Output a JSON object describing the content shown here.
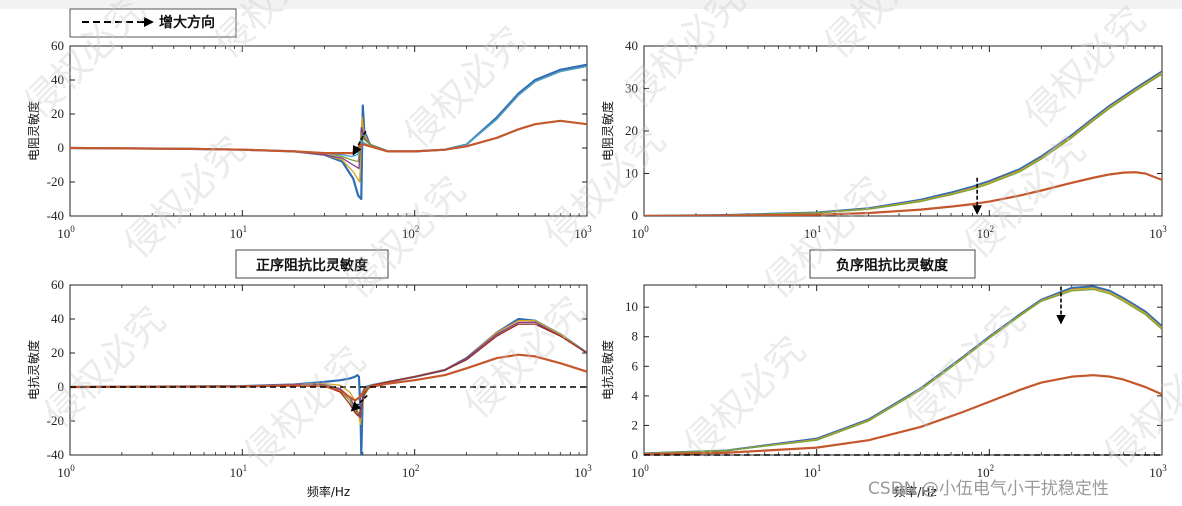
{
  "legend": {
    "label": "增大方向"
  },
  "watermark": {
    "text": "侵权必究"
  },
  "credit": {
    "text": "CSDN @小伍电气小干扰稳定性"
  },
  "colors": {
    "blue": "#2f6db5",
    "orange": "#c5572c",
    "yellow": "#d9a21e",
    "purple": "#7e3f8f",
    "green": "#7aa33a",
    "cyan": "#4aa3d8",
    "red": "#a52a2a",
    "axis": "#222222",
    "reference": "#000000"
  },
  "chart_data": [
    {
      "id": "tl",
      "type": "line",
      "xscale": "log",
      "xlim": [
        1,
        1000
      ],
      "ylim": [
        -40,
        60
      ],
      "yticks": [
        -40,
        -20,
        0,
        20,
        40,
        60
      ],
      "xticks": [
        {
          "base": "10",
          "exp": "0"
        },
        {
          "base": "10",
          "exp": "1"
        },
        {
          "base": "10",
          "exp": "2"
        },
        {
          "base": "10",
          "exp": "3"
        }
      ],
      "ylabel": "电阻灵敏度",
      "xlabel": "",
      "title": "",
      "series": [
        {
          "color": "blue",
          "x": [
            1,
            5,
            10,
            20,
            30,
            38,
            44,
            47,
            49,
            50,
            51,
            55,
            70,
            100,
            150,
            200,
            300,
            400,
            500,
            700,
            1000
          ],
          "y": [
            0,
            -0.5,
            -1,
            -2,
            -4,
            -8,
            -18,
            -28,
            -30,
            25,
            10,
            2,
            -2,
            -2,
            -1,
            2,
            18,
            32,
            40,
            46,
            49
          ]
        },
        {
          "color": "yellow",
          "x": [
            1,
            5,
            10,
            20,
            30,
            38,
            44,
            48,
            49.5,
            51,
            55,
            70,
            100,
            150,
            200,
            300,
            400,
            500,
            700,
            1000
          ],
          "y": [
            0,
            -0.5,
            -1,
            -2,
            -4,
            -7,
            -14,
            -20,
            18,
            8,
            2,
            -2,
            -2,
            -1,
            2,
            17,
            31,
            39,
            45,
            48
          ]
        },
        {
          "color": "purple",
          "x": [
            1,
            5,
            10,
            20,
            30,
            38,
            44,
            47.5,
            49,
            51,
            55,
            70,
            100,
            150,
            200,
            300,
            400,
            500,
            700,
            1000
          ],
          "y": [
            0,
            -0.5,
            -1,
            -2,
            -4,
            -6,
            -10,
            -12,
            12,
            6,
            2,
            -2,
            -2,
            -1,
            2,
            17,
            31,
            39,
            45,
            48
          ]
        },
        {
          "color": "green",
          "x": [
            1,
            5,
            10,
            20,
            30,
            38,
            43,
            47,
            49,
            51,
            55,
            70,
            100,
            150,
            200,
            300,
            400,
            500,
            700,
            1000
          ],
          "y": [
            0,
            -0.5,
            -1,
            -2,
            -3,
            -5,
            -7,
            -8,
            8,
            5,
            2,
            -2,
            -2,
            -1,
            2,
            17,
            31,
            39,
            45,
            48
          ]
        },
        {
          "color": "cyan",
          "x": [
            1,
            5,
            10,
            20,
            30,
            38,
            43,
            46.5,
            48.5,
            51,
            55,
            70,
            100,
            150,
            200,
            300,
            400,
            500,
            700,
            1000
          ],
          "y": [
            0,
            -0.5,
            -1,
            -2,
            -3,
            -4,
            -5,
            -4,
            4,
            3,
            1,
            -2,
            -2,
            -1,
            2,
            17,
            31,
            39,
            45,
            48
          ]
        },
        {
          "color": "orange",
          "x": [
            1,
            5,
            10,
            20,
            30,
            38,
            43,
            46,
            48,
            51,
            55,
            70,
            100,
            150,
            200,
            300,
            400,
            500,
            700,
            1000
          ],
          "y": [
            0,
            -0.5,
            -1,
            -2,
            -3,
            -3,
            -3,
            -2,
            2,
            2,
            1,
            -2,
            -2,
            -1,
            1,
            6,
            11,
            14,
            16,
            14
          ]
        }
      ],
      "arrow": {
        "from": [
          52,
          10
        ],
        "to": [
          44,
          -4
        ]
      }
    },
    {
      "id": "tr",
      "type": "line",
      "xscale": "log",
      "xlim": [
        1,
        1000
      ],
      "ylim": [
        0,
        40
      ],
      "yticks": [
        0,
        10,
        20,
        30,
        40
      ],
      "xticks": [
        {
          "base": "10",
          "exp": "0"
        },
        {
          "base": "10",
          "exp": "1"
        },
        {
          "base": "10",
          "exp": "2"
        },
        {
          "base": "10",
          "exp": "3"
        }
      ],
      "ylabel": "电阻灵敏度",
      "xlabel": "",
      "title": "",
      "series": [
        {
          "color": "blue",
          "x": [
            1,
            3,
            10,
            20,
            40,
            60,
            80,
            100,
            150,
            200,
            300,
            400,
            500,
            700,
            1000
          ],
          "y": [
            0,
            0.2,
            0.8,
            1.8,
            3.8,
            5.5,
            6.9,
            8.2,
            11,
            14,
            19,
            23,
            26,
            30,
            34
          ]
        },
        {
          "color": "yellow",
          "x": [
            1,
            3,
            10,
            20,
            40,
            60,
            80,
            100,
            150,
            200,
            300,
            400,
            500,
            700,
            1000
          ],
          "y": [
            0,
            0.2,
            0.75,
            1.7,
            3.6,
            5.2,
            6.6,
            7.9,
            10.7,
            13.7,
            18.7,
            22.7,
            25.7,
            29.7,
            33.7
          ]
        },
        {
          "color": "green",
          "x": [
            1,
            3,
            10,
            20,
            40,
            60,
            80,
            100,
            150,
            200,
            300,
            400,
            500,
            700,
            1000
          ],
          "y": [
            0,
            0.2,
            0.7,
            1.6,
            3.4,
            5.0,
            6.3,
            7.6,
            10.4,
            13.4,
            18.4,
            22.4,
            25.4,
            29.4,
            33.4
          ]
        },
        {
          "color": "orange",
          "x": [
            1,
            3,
            10,
            20,
            40,
            60,
            80,
            100,
            150,
            200,
            300,
            400,
            500,
            600,
            700,
            800,
            1000
          ],
          "y": [
            0,
            0.1,
            0.3,
            0.7,
            1.5,
            2.2,
            2.8,
            3.4,
            4.8,
            6.0,
            7.8,
            9.0,
            9.8,
            10.2,
            10.3,
            10.0,
            8.5
          ]
        }
      ],
      "arrow": {
        "from": [
          85,
          9
        ],
        "to": [
          85,
          0.5
        ]
      }
    },
    {
      "id": "bl",
      "type": "line",
      "xscale": "log",
      "xlim": [
        1,
        1000
      ],
      "ylim": [
        -40,
        60
      ],
      "yticks": [
        -40,
        -20,
        0,
        20,
        40,
        60
      ],
      "xticks": [
        {
          "base": "10",
          "exp": "0"
        },
        {
          "base": "10",
          "exp": "1"
        },
        {
          "base": "10",
          "exp": "2"
        },
        {
          "base": "10",
          "exp": "3"
        }
      ],
      "ylabel": "电抗灵敏度",
      "xlabel": "频率/Hz",
      "title": "正序阻抗比灵敏度",
      "reference": 0,
      "series": [
        {
          "color": "blue",
          "x": [
            1,
            10,
            20,
            30,
            37,
            42,
            45,
            46.5,
            47.5,
            48.5,
            49,
            50,
            52,
            56,
            70,
            100,
            150,
            200,
            300,
            400,
            500,
            700,
            1000
          ],
          "y": [
            0,
            0.5,
            1.5,
            3,
            4,
            5,
            6,
            7,
            6,
            -15,
            -40,
            -3,
            0,
            1,
            3,
            6,
            10,
            17,
            32,
            40,
            39,
            31,
            20
          ]
        },
        {
          "color": "yellow",
          "x": [
            1,
            10,
            20,
            30,
            37,
            42,
            45,
            47,
            48.5,
            49.5,
            52,
            56,
            70,
            100,
            150,
            200,
            300,
            400,
            500,
            700,
            1000
          ],
          "y": [
            0,
            0.5,
            1.5,
            2,
            1,
            -3,
            -8,
            -15,
            -22,
            -8,
            -1,
            1,
            3,
            6,
            10,
            17,
            32,
            39,
            39,
            31,
            20
          ]
        },
        {
          "color": "purple",
          "x": [
            1,
            10,
            20,
            30,
            37,
            42,
            45,
            47,
            48.5,
            50,
            53,
            57,
            70,
            100,
            150,
            200,
            300,
            400,
            500,
            700,
            1000
          ],
          "y": [
            0,
            0.5,
            1.5,
            1.5,
            -1,
            -6,
            -12,
            -16,
            -18,
            -6,
            -1,
            1,
            3,
            6,
            10,
            17,
            31,
            38,
            38,
            30,
            20
          ]
        },
        {
          "color": "green",
          "x": [
            1,
            10,
            20,
            30,
            37,
            42,
            45,
            47,
            49,
            51,
            54,
            58,
            70,
            100,
            150,
            200,
            300,
            400,
            500,
            700,
            1000
          ],
          "y": [
            0,
            0.5,
            1,
            1,
            -2,
            -8,
            -14,
            -16,
            -14,
            -5,
            -1,
            1,
            3,
            6,
            10,
            16,
            30,
            37,
            37,
            30,
            20
          ]
        },
        {
          "color": "red",
          "x": [
            1,
            10,
            20,
            30,
            37,
            42,
            45,
            47,
            49,
            51,
            54,
            58,
            70,
            100,
            150,
            200,
            300,
            400,
            500,
            700,
            1000
          ],
          "y": [
            0,
            0.5,
            1,
            0.5,
            -3,
            -10,
            -15,
            -17,
            -13,
            -4,
            0,
            1,
            3,
            6,
            10,
            16,
            30,
            37,
            37,
            30,
            20
          ]
        },
        {
          "color": "orange",
          "x": [
            1,
            10,
            20,
            30,
            37,
            42,
            45,
            48,
            51,
            55,
            70,
            100,
            150,
            200,
            300,
            400,
            500,
            700,
            1000
          ],
          "y": [
            0,
            0.3,
            0.8,
            0.5,
            -2,
            -6,
            -8,
            -6,
            -2,
            0,
            2,
            4,
            7,
            11,
            17,
            19,
            18,
            14,
            9
          ]
        }
      ],
      "arrow": {
        "from": [
          53,
          -5
        ],
        "to": [
          43,
          -14
        ]
      }
    },
    {
      "id": "br",
      "type": "line",
      "xscale": "log",
      "xlim": [
        1,
        1000
      ],
      "ylim": [
        0,
        11.5
      ],
      "yticks": [
        0,
        2,
        4,
        6,
        8,
        10
      ],
      "xticks": [
        {
          "base": "10",
          "exp": "0"
        },
        {
          "base": "10",
          "exp": "1"
        },
        {
          "base": "10",
          "exp": "2"
        },
        {
          "base": "10",
          "exp": "3"
        }
      ],
      "ylabel": "电抗灵敏度",
      "xlabel": "频率/Hz",
      "title": "负序阻抗比灵敏度",
      "reference": 0,
      "series": [
        {
          "color": "blue",
          "x": [
            1,
            3,
            10,
            20,
            40,
            70,
            100,
            150,
            200,
            300,
            400,
            500,
            600,
            800,
            1000
          ],
          "y": [
            0.1,
            0.3,
            1.1,
            2.4,
            4.5,
            6.6,
            8.0,
            9.5,
            10.5,
            11.3,
            11.4,
            11.1,
            10.6,
            9.7,
            8.7
          ]
        },
        {
          "color": "yellow",
          "x": [
            1,
            3,
            10,
            20,
            40,
            70,
            100,
            150,
            200,
            300,
            400,
            500,
            600,
            800,
            1000
          ],
          "y": [
            0.1,
            0.3,
            1.05,
            2.35,
            4.45,
            6.55,
            7.95,
            9.45,
            10.45,
            11.2,
            11.3,
            11.0,
            10.5,
            9.6,
            8.6
          ]
        },
        {
          "color": "green",
          "x": [
            1,
            3,
            10,
            20,
            40,
            70,
            100,
            150,
            200,
            300,
            400,
            500,
            600,
            800,
            1000
          ],
          "y": [
            0.1,
            0.3,
            1.0,
            2.3,
            4.4,
            6.5,
            7.9,
            9.4,
            10.4,
            11.1,
            11.2,
            10.9,
            10.4,
            9.5,
            8.5
          ]
        },
        {
          "color": "orange",
          "x": [
            1,
            3,
            10,
            20,
            40,
            70,
            100,
            150,
            200,
            300,
            400,
            500,
            600,
            800,
            1000
          ],
          "y": [
            0.05,
            0.15,
            0.5,
            1.0,
            1.9,
            2.9,
            3.6,
            4.4,
            4.9,
            5.3,
            5.4,
            5.3,
            5.1,
            4.6,
            4.1
          ]
        }
      ],
      "arrow": {
        "from": [
          260,
          11.4
        ],
        "to": [
          260,
          8.9
        ]
      }
    }
  ]
}
